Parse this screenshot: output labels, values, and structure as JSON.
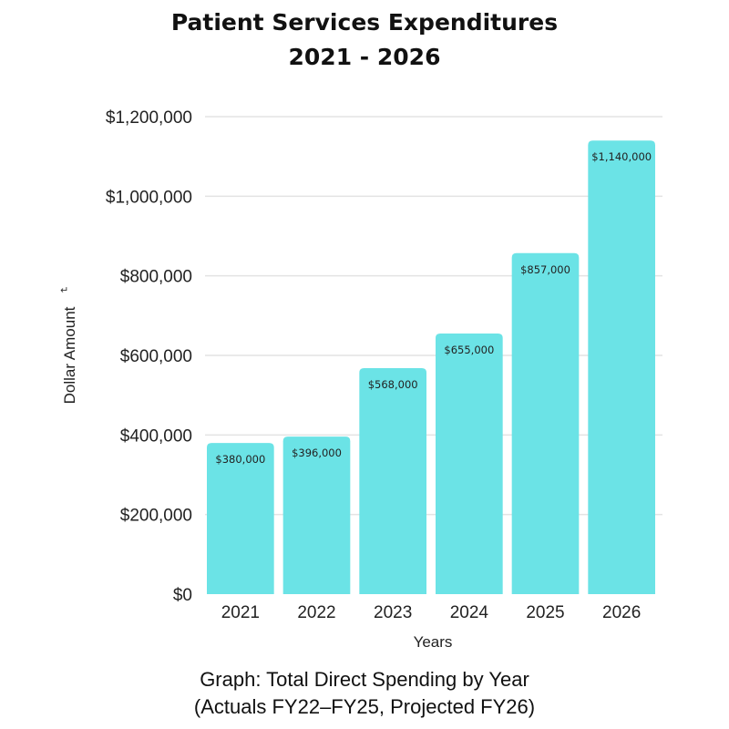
{
  "chart_data": {
    "type": "bar",
    "title": "Patient Services Expenditures",
    "subtitle": "2021 - 2026",
    "xlabel": "Years",
    "ylabel": "Dollar Amount",
    "categories": [
      "2021",
      "2022",
      "2023",
      "2024",
      "2025",
      "2026"
    ],
    "values": [
      380000,
      396000,
      568000,
      655000,
      857000,
      1140000
    ],
    "data_labels": [
      "$380,000",
      "$396,000",
      "$568,000",
      "$655,000",
      "$857,000",
      "$1,140,000"
    ],
    "ylim": [
      0,
      1200000
    ],
    "yticks": [
      0,
      200000,
      400000,
      600000,
      800000,
      1000000,
      1200000
    ],
    "ytick_labels": [
      "$0",
      "$200,000",
      "$400,000",
      "$600,000",
      "$800,000",
      "$1,000,000",
      "$1,200,000"
    ],
    "grid": true,
    "legend": "none",
    "bar_color": "#6be3e6",
    "grid_color": "#e3e3e3"
  },
  "caption": {
    "line1": "Graph: Total Direct Spending by Year",
    "line2": "(Actuals FY22–FY25, Projected FY26)"
  },
  "artifact_glyph": "↵"
}
